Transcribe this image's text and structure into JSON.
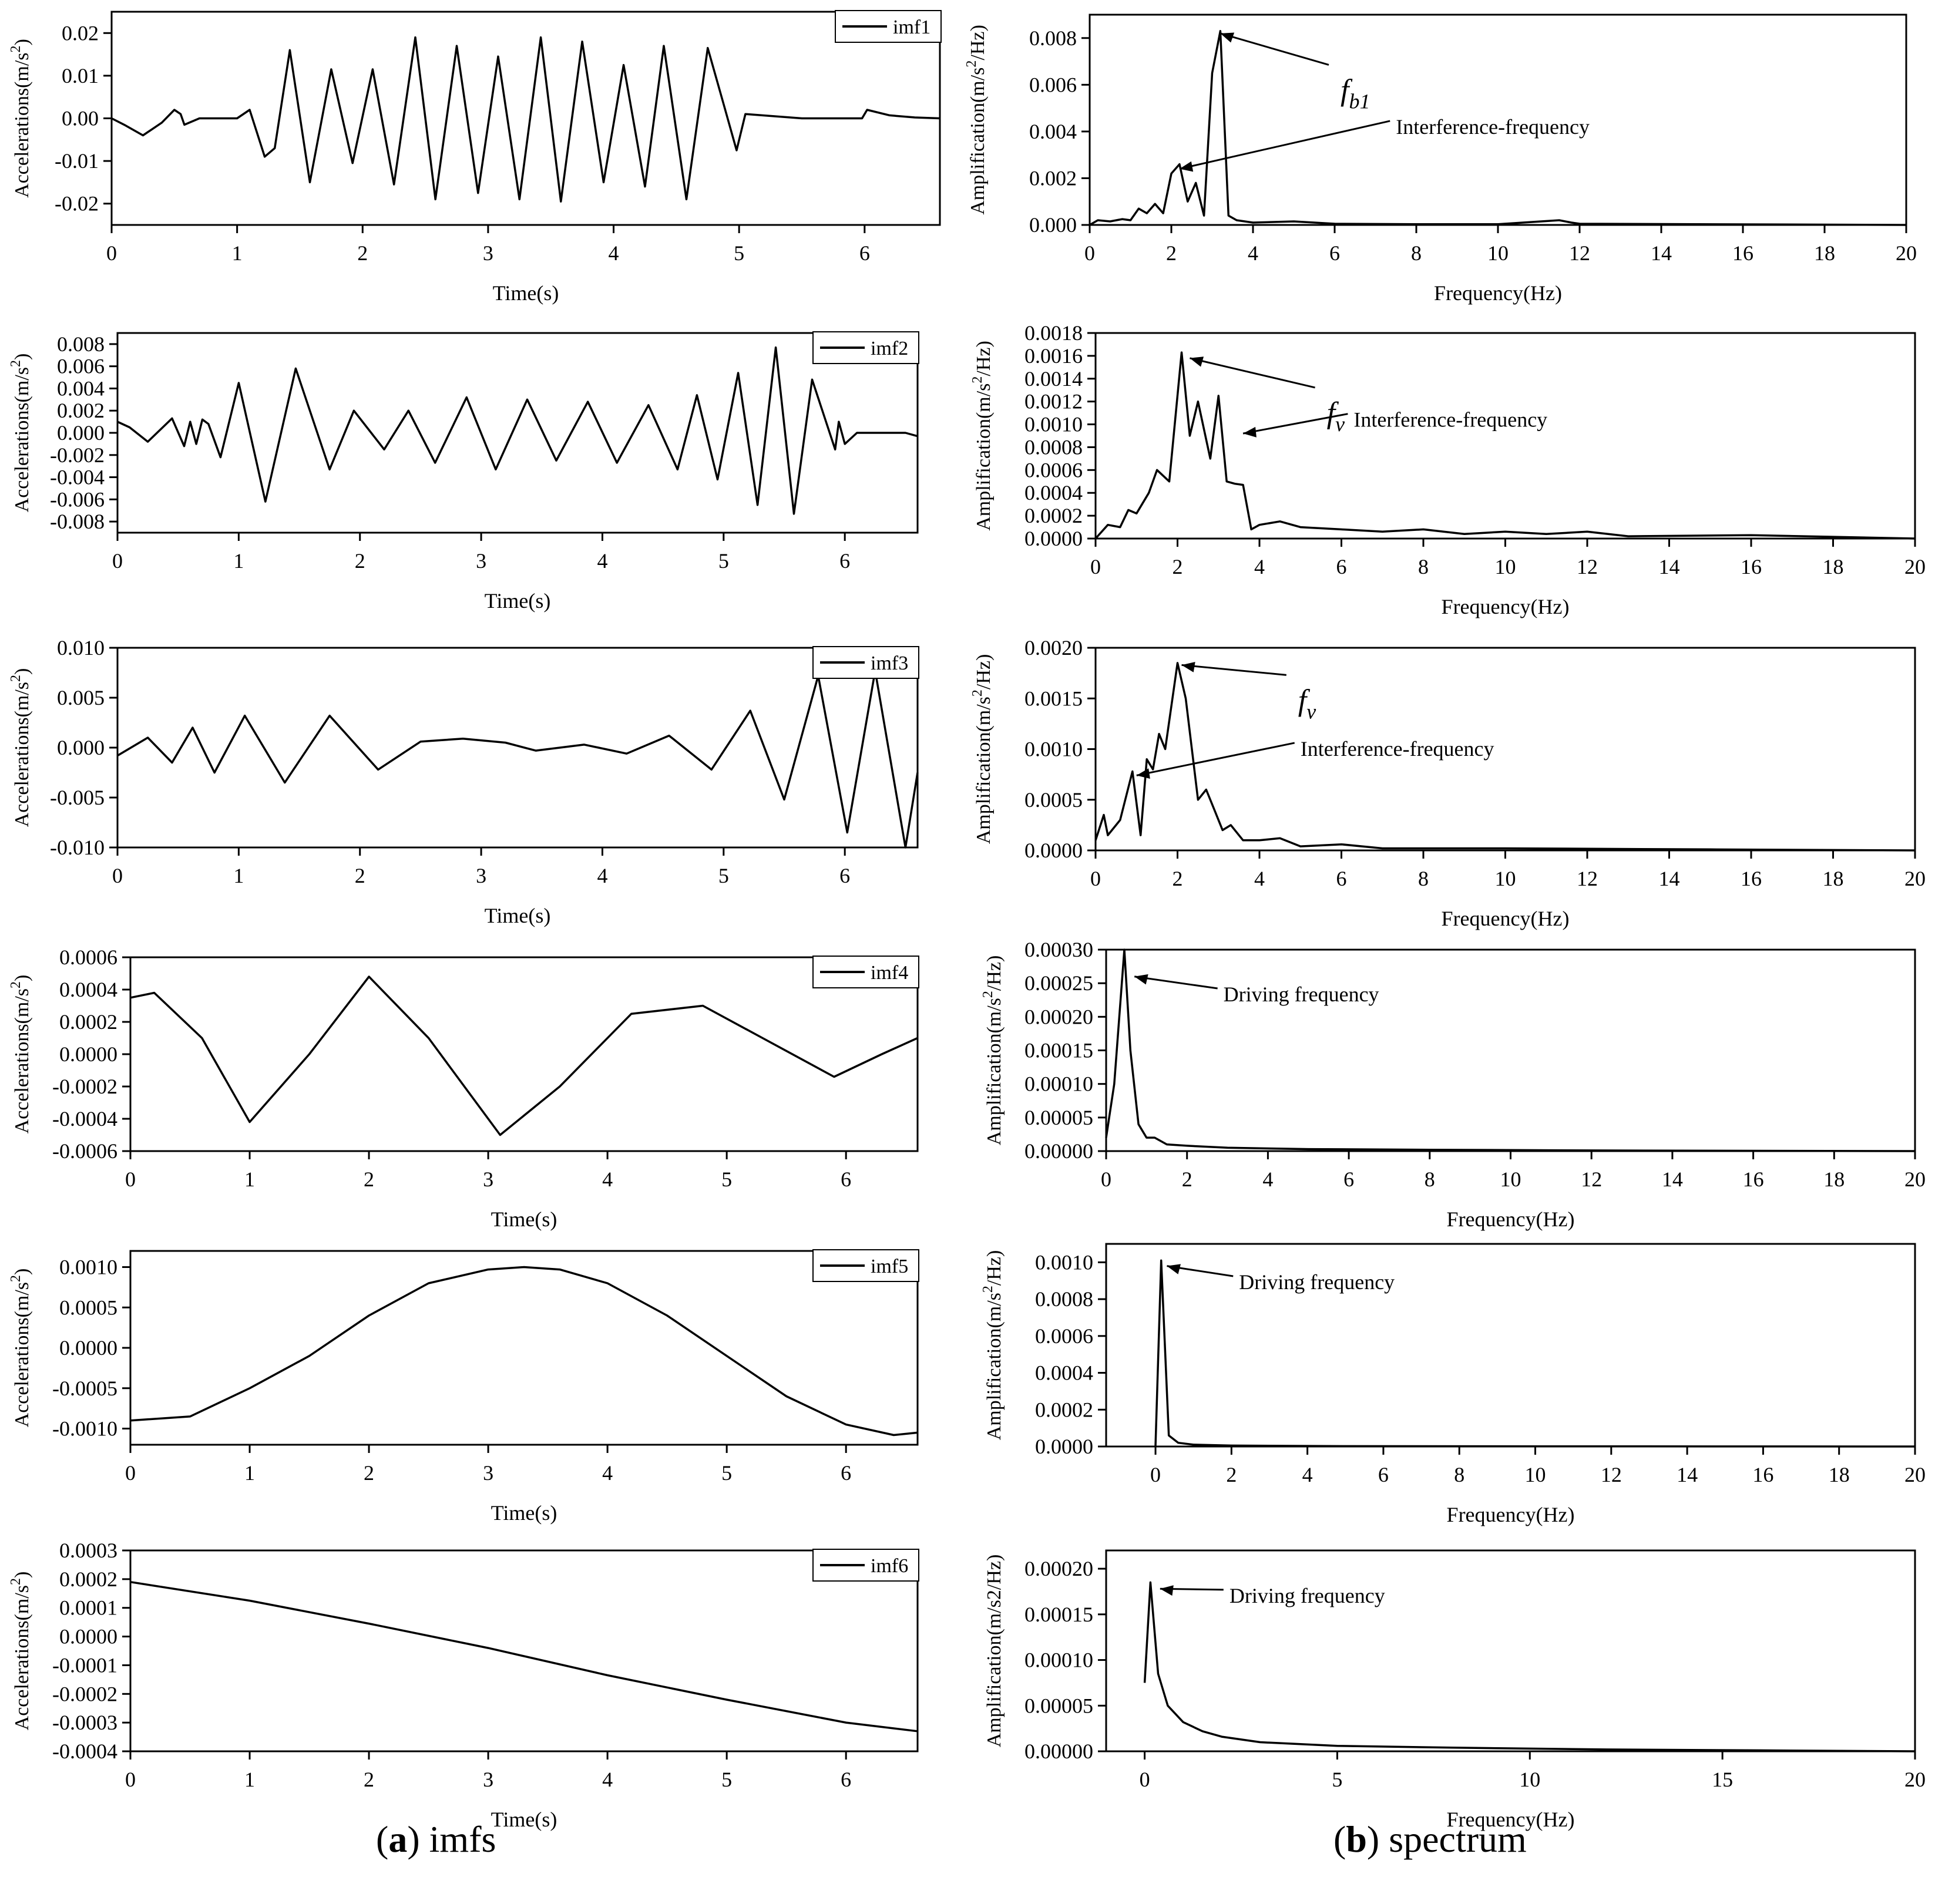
{
  "captions": {
    "a_letter": "a",
    "a_text": "imfs",
    "b_letter": "b",
    "b_text": "spectrum"
  },
  "colors": {
    "line": "#000000",
    "background": "#ffffff"
  },
  "chart_data": [
    {
      "id": "imf1",
      "type": "line",
      "xlabel": "Time(s)",
      "ylabel": "Accelerations(m/s²)",
      "xlim": [
        0,
        6.6
      ],
      "ylim": [
        -0.025,
        0.025
      ],
      "xticks": [
        "0",
        "1",
        "2",
        "3",
        "4",
        "5",
        "6"
      ],
      "yticks": [
        "-0.02",
        "-0.01",
        "0.00",
        "0.01",
        "0.02"
      ],
      "legend": "imf1",
      "legend_position": "top-right",
      "series": [
        {
          "name": "imf1",
          "x": [
            0,
            0.1,
            0.25,
            0.4,
            0.5,
            0.55,
            0.58,
            0.7,
            1.0,
            1.1,
            1.22,
            1.3,
            1.42,
            1.58,
            1.75,
            1.92,
            2.08,
            2.25,
            2.42,
            2.58,
            2.75,
            2.92,
            3.08,
            3.25,
            3.42,
            3.58,
            3.75,
            3.92,
            4.08,
            4.25,
            4.4,
            4.58,
            4.75,
            4.88,
            4.98,
            5.05,
            5.5,
            5.98,
            6.02,
            6.2,
            6.4,
            6.6
          ],
          "y": [
            0,
            -0.0015,
            -0.004,
            -0.001,
            0.002,
            0.001,
            -0.0015,
            0,
            0,
            0.002,
            -0.009,
            -0.007,
            0.016,
            -0.015,
            0.0115,
            -0.0105,
            0.0115,
            -0.0155,
            0.019,
            -0.019,
            0.017,
            -0.0175,
            0.0145,
            -0.019,
            0.019,
            -0.0195,
            0.018,
            -0.015,
            0.0125,
            -0.016,
            0.017,
            -0.019,
            0.0165,
            0.003,
            -0.0075,
            0.001,
            0,
            0,
            0.002,
            0.0007,
            0.0002,
            0
          ]
        }
      ],
      "annotations": []
    },
    {
      "id": "spec1",
      "type": "line",
      "xlabel": "Frequency(Hz)",
      "ylabel": "Amplification(m/s²/Hz)",
      "xlim": [
        0,
        20
      ],
      "ylim": [
        0,
        0.009
      ],
      "xticks": [
        "0",
        "2",
        "4",
        "6",
        "8",
        "10",
        "12",
        "14",
        "16",
        "18",
        "20"
      ],
      "yticks": [
        "0.000",
        "0.002",
        "0.004",
        "0.006",
        "0.008"
      ],
      "series": [
        {
          "name": "",
          "x": [
            0,
            0.2,
            0.5,
            0.8,
            1.0,
            1.2,
            1.4,
            1.6,
            1.8,
            2.0,
            2.2,
            2.4,
            2.6,
            2.8,
            3.0,
            3.2,
            3.4,
            3.6,
            4.0,
            5.0,
            6.0,
            8.0,
            10,
            11.5,
            11.8,
            12,
            20
          ],
          "y": [
            0,
            0.0002,
            0.00015,
            0.00025,
            0.0002,
            0.0007,
            0.0005,
            0.0009,
            0.0005,
            0.0022,
            0.0026,
            0.001,
            0.0018,
            0.0004,
            0.0065,
            0.0083,
            0.0004,
            0.0002,
            0.0001,
            0.00015,
            5e-05,
            3e-05,
            3e-05,
            0.0002,
            0.0001,
            5e-05,
            0
          ]
        }
      ],
      "annotations": [
        {
          "label": "b1",
          "kind": "f-sub",
          "x": 3.2,
          "y": 0.0082,
          "text_x": 6,
          "text_y": 0.0065
        },
        {
          "label": "Interference-frequency",
          "kind": "text",
          "x": 2.2,
          "y": 0.0024,
          "text_x": 7.5,
          "text_y": 0.0041
        }
      ]
    },
    {
      "id": "imf2",
      "type": "line",
      "xlabel": "Time(s)",
      "ylabel": "Accelerations(m/s²)",
      "xlim": [
        0,
        6.6
      ],
      "ylim": [
        -0.009,
        0.009
      ],
      "xticks": [
        "0",
        "1",
        "2",
        "3",
        "4",
        "5",
        "6"
      ],
      "yticks": [
        "-0.008",
        "-0.006",
        "-0.004",
        "-0.002",
        "0.000",
        "0.002",
        "0.004",
        "0.006",
        "0.008"
      ],
      "legend": "imf2",
      "legend_position": "top-right",
      "series": [
        {
          "name": "imf2",
          "x": [
            0,
            0.1,
            0.25,
            0.45,
            0.55,
            0.6,
            0.65,
            0.7,
            0.75,
            0.85,
            1.0,
            1.22,
            1.47,
            1.75,
            1.95,
            2.2,
            2.4,
            2.62,
            2.88,
            3.12,
            3.38,
            3.62,
            3.88,
            4.12,
            4.38,
            4.62,
            4.78,
            4.95,
            5.12,
            5.28,
            5.43,
            5.58,
            5.73,
            5.92,
            5.95,
            6.0,
            6.1,
            6.5,
            6.6
          ],
          "y": [
            0.001,
            0.0005,
            -0.0008,
            0.0013,
            -0.0012,
            0.001,
            -0.001,
            0.0012,
            0.0008,
            -0.0022,
            0.0045,
            -0.0062,
            0.0058,
            -0.0033,
            0.002,
            -0.0015,
            0.002,
            -0.0027,
            0.0032,
            -0.0033,
            0.003,
            -0.0025,
            0.0028,
            -0.0027,
            0.0025,
            -0.0033,
            0.0034,
            -0.0042,
            0.0054,
            -0.0065,
            0.0077,
            -0.0073,
            0.0048,
            -0.0015,
            0.001,
            -0.001,
            0,
            0,
            -0.0003
          ]
        }
      ],
      "annotations": []
    },
    {
      "id": "spec2",
      "type": "line",
      "xlabel": "Frequency(Hz)",
      "ylabel": "Amplification(m/s²/Hz)",
      "xlim": [
        0,
        20
      ],
      "ylim": [
        0,
        0.0018
      ],
      "xticks": [
        "0",
        "2",
        "4",
        "6",
        "8",
        "10",
        "12",
        "14",
        "16",
        "18",
        "20"
      ],
      "yticks": [
        "0.0000",
        "0.0002",
        "0.0004",
        "0.0006",
        "0.0008",
        "0.0010",
        "0.0012",
        "0.0014",
        "0.0016",
        "0.0018"
      ],
      "series": [
        {
          "name": "",
          "x": [
            0,
            0.3,
            0.6,
            0.8,
            1.0,
            1.3,
            1.5,
            1.8,
            2.1,
            2.3,
            2.5,
            2.8,
            3.0,
            3.2,
            3.4,
            3.6,
            3.8,
            4.0,
            4.5,
            5.0,
            6.0,
            7.0,
            8.0,
            9.0,
            10.0,
            11.0,
            12.0,
            13.0,
            16.0,
            20.0
          ],
          "y": [
            0,
            0.00012,
            0.0001,
            0.00025,
            0.00022,
            0.0004,
            0.0006,
            0.0005,
            0.00163,
            0.0009,
            0.0012,
            0.0007,
            0.00125,
            0.0005,
            0.00048,
            0.00047,
            8e-05,
            0.00012,
            0.00015,
            0.0001,
            8e-05,
            6e-05,
            8e-05,
            4e-05,
            6e-05,
            4e-05,
            6e-05,
            2e-05,
            3e-05,
            0
          ]
        }
      ],
      "annotations": [
        {
          "label": "v",
          "kind": "f-sub",
          "x": 2.3,
          "y": 0.00158,
          "text_x": 5.5,
          "text_y": 0.00125
        },
        {
          "label": "Interference-frequency",
          "kind": "text",
          "x": 3.6,
          "y": 0.00092,
          "text_x": 6.3,
          "text_y": 0.00102
        }
      ]
    },
    {
      "id": "imf3",
      "type": "line",
      "xlabel": "Time(s)",
      "ylabel": "Accelerations(m/s²)",
      "xlim": [
        0,
        6.6
      ],
      "ylim": [
        -0.01,
        0.01
      ],
      "xticks": [
        "0",
        "1",
        "2",
        "3",
        "4",
        "5",
        "6"
      ],
      "yticks": [
        "-0.010",
        "-0.005",
        "0.000",
        "0.005",
        "0.010"
      ],
      "legend": "imf3",
      "legend_position": "top-right",
      "series": [
        {
          "name": "imf3",
          "x": [
            0,
            0.25,
            0.45,
            0.62,
            0.8,
            1.05,
            1.38,
            1.75,
            2.15,
            2.5,
            2.85,
            3.2,
            3.45,
            3.85,
            4.2,
            4.55,
            4.9,
            5.22,
            5.5,
            5.78,
            6.02,
            6.25,
            6.5,
            6.6
          ],
          "y": [
            -0.0008,
            0.001,
            -0.0015,
            0.002,
            -0.0025,
            0.0032,
            -0.0035,
            0.0032,
            -0.0022,
            0.0006,
            0.0009,
            0.0005,
            -0.0003,
            0.0003,
            -0.0006,
            0.0012,
            -0.0022,
            0.0037,
            -0.0052,
            0.0072,
            -0.0085,
            0.0077,
            -0.01,
            -0.0025
          ]
        }
      ],
      "annotations": []
    },
    {
      "id": "spec3",
      "type": "line",
      "xlabel": "Frequency(Hz)",
      "ylabel": "Amplification(m/s²/Hz)",
      "xlim": [
        0,
        20
      ],
      "ylim": [
        0,
        0.002
      ],
      "xticks": [
        "0",
        "2",
        "4",
        "6",
        "8",
        "10",
        "12",
        "14",
        "16",
        "18",
        "20"
      ],
      "yticks": [
        "0.0000",
        "0.0005",
        "0.0010",
        "0.0015",
        "0.0020"
      ],
      "series": [
        {
          "name": "",
          "x": [
            0,
            0.2,
            0.3,
            0.6,
            0.9,
            1.1,
            1.25,
            1.4,
            1.55,
            1.7,
            2.0,
            2.2,
            2.5,
            2.7,
            2.9,
            3.1,
            3.3,
            3.6,
            4.0,
            4.5,
            5.0,
            6.0,
            7.0,
            10,
            15,
            20
          ],
          "y": [
            0.0001,
            0.00035,
            0.00015,
            0.0003,
            0.00078,
            0.00015,
            0.0009,
            0.0008,
            0.00115,
            0.001,
            0.00185,
            0.0015,
            0.0005,
            0.0006,
            0.0004,
            0.0002,
            0.00025,
            0.0001,
            0.0001,
            0.00012,
            4e-05,
            6e-05,
            2e-05,
            2e-05,
            1e-05,
            0
          ]
        }
      ],
      "annotations": [
        {
          "label": "v",
          "kind": "f-sub",
          "x": 2.1,
          "y": 0.00183,
          "text_x": 4.8,
          "text_y": 0.00165
        },
        {
          "label": "Interference-frequency",
          "kind": "text",
          "x": 1.0,
          "y": 0.00074,
          "text_x": 5.0,
          "text_y": 0.00098
        }
      ]
    },
    {
      "id": "imf4",
      "type": "line",
      "xlabel": "Time(s)",
      "ylabel": "Accelerations(m/s²)",
      "xlim": [
        0,
        6.6
      ],
      "ylim": [
        -0.0006,
        0.0006
      ],
      "xticks": [
        "0",
        "1",
        "2",
        "3",
        "4",
        "5",
        "6"
      ],
      "yticks": [
        "-0.0006",
        "-0.0004",
        "-0.0002",
        "0.0000",
        "0.0002",
        "0.0004",
        "0.0006"
      ],
      "legend": "imf4",
      "legend_position": "top-right",
      "series": [
        {
          "name": "imf4",
          "x": [
            0,
            0.2,
            0.6,
            1.0,
            1.5,
            2.0,
            2.5,
            3.1,
            3.6,
            4.2,
            4.8,
            5.3,
            5.9,
            6.3,
            6.6
          ],
          "y": [
            0.00035,
            0.00038,
            0.0001,
            -0.00042,
            0.0,
            0.00048,
            0.0001,
            -0.0005,
            -0.0002,
            0.00025,
            0.0003,
            0.0001,
            -0.00014,
            0.0,
            0.0001
          ]
        }
      ],
      "annotations": []
    },
    {
      "id": "spec4",
      "type": "line",
      "xlabel": "Frequency(Hz)",
      "ylabel": "Amplification(m/s²/Hz)",
      "xlim": [
        0,
        20
      ],
      "ylim": [
        0,
        0.0003
      ],
      "xticks": [
        "0",
        "2",
        "4",
        "6",
        "8",
        "10",
        "12",
        "14",
        "16",
        "18",
        "20"
      ],
      "yticks": [
        "0.00000",
        "0.00005",
        "0.00010",
        "0.00015",
        "0.00020",
        "0.00025",
        "0.00030"
      ],
      "series": [
        {
          "name": "",
          "x": [
            0,
            0.2,
            0.45,
            0.6,
            0.8,
            1.0,
            1.2,
            1.5,
            2.0,
            3.0,
            5.0,
            8.0,
            12.0,
            20.0
          ],
          "y": [
            2e-05,
            0.0001,
            0.0003,
            0.00015,
            4e-05,
            2e-05,
            2e-05,
            1e-05,
            8e-06,
            5e-06,
            3e-06,
            2e-06,
            1e-06,
            0
          ]
        }
      ],
      "annotations": [
        {
          "label": "Driving frequency",
          "kind": "text",
          "x": 0.7,
          "y": 0.00026,
          "text_x": 2.9,
          "text_y": 0.00023
        }
      ]
    },
    {
      "id": "imf5",
      "type": "line",
      "xlabel": "Time(s)",
      "ylabel": "Accelerations(m/s²)",
      "xlim": [
        0,
        6.6
      ],
      "ylim": [
        -0.0012,
        0.0012
      ],
      "xticks": [
        "0",
        "1",
        "2",
        "3",
        "4",
        "5",
        "6"
      ],
      "yticks": [
        "-0.0010",
        "-0.0005",
        "0.0000",
        "0.0005",
        "0.0010"
      ],
      "legend": "imf5",
      "legend_position": "top-right",
      "series": [
        {
          "name": "imf5",
          "x": [
            0,
            0.5,
            1.0,
            1.5,
            2.0,
            2.5,
            3.0,
            3.3,
            3.6,
            4.0,
            4.5,
            5.0,
            5.5,
            6.0,
            6.4,
            6.6
          ],
          "y": [
            -0.0009,
            -0.00085,
            -0.0005,
            -0.0001,
            0.0004,
            0.0008,
            0.00097,
            0.001,
            0.00097,
            0.0008,
            0.0004,
            -0.0001,
            -0.0006,
            -0.00095,
            -0.00108,
            -0.00105
          ]
        }
      ],
      "annotations": []
    },
    {
      "id": "spec5",
      "type": "line",
      "xlabel": "Frequency(Hz)",
      "ylabel": "Amplification(m/s²/Hz)",
      "xlim": [
        -1.3,
        20
      ],
      "ylim": [
        0,
        0.0011
      ],
      "xticks": [
        "0",
        "2",
        "4",
        "6",
        "8",
        "10",
        "12",
        "14",
        "16",
        "18",
        "20"
      ],
      "yticks": [
        "0.0000",
        "0.0002",
        "0.0004",
        "0.0006",
        "0.0008",
        "0.0010"
      ],
      "series": [
        {
          "name": "",
          "x": [
            0,
            0.15,
            0.35,
            0.6,
            1.0,
            2.0,
            5.0,
            10.0,
            20.0
          ],
          "y": [
            0,
            0.00101,
            6e-05,
            2e-05,
            1e-05,
            5e-06,
            2e-06,
            1e-06,
            0
          ]
        }
      ],
      "annotations": [
        {
          "label": "Driving frequency",
          "kind": "text",
          "x": 0.3,
          "y": 0.00098,
          "text_x": 2.2,
          "text_y": 0.00088
        }
      ]
    },
    {
      "id": "imf6",
      "type": "line",
      "xlabel": "Time(s)",
      "ylabel": "Accelerations(m/s²)",
      "xlim": [
        0,
        6.6
      ],
      "ylim": [
        -0.0004,
        0.0003
      ],
      "xticks": [
        "0",
        "1",
        "2",
        "3",
        "4",
        "5",
        "6"
      ],
      "yticks": [
        "-0.0004",
        "-0.0003",
        "-0.0002",
        "-0.0001",
        "0.0000",
        "0.0001",
        "0.0002",
        "0.0003"
      ],
      "legend": "imf6",
      "legend_position": "top-right",
      "series": [
        {
          "name": "imf6",
          "x": [
            0,
            1,
            2,
            3,
            4,
            5,
            6,
            6.6
          ],
          "y": [
            0.00019,
            0.000125,
            4.5e-05,
            -4e-05,
            -0.000135,
            -0.00022,
            -0.0003,
            -0.00033
          ]
        }
      ],
      "annotations": []
    },
    {
      "id": "spec6",
      "type": "line",
      "xlabel": "Frequency(Hz)",
      "ylabel": "Amplification(m/s2/Hz)",
      "xlim": [
        -1,
        20
      ],
      "ylim": [
        0,
        0.00022
      ],
      "xticks": [
        "0",
        "5",
        "10",
        "15",
        "20"
      ],
      "yticks": [
        "0.00000",
        "0.00005",
        "0.00010",
        "0.00015",
        "0.00020"
      ],
      "series": [
        {
          "name": "",
          "x": [
            0,
            0.15,
            0.35,
            0.6,
            1.0,
            1.5,
            2.0,
            3.0,
            5.0,
            8.0,
            12.0,
            16.0,
            20.0
          ],
          "y": [
            7.5e-05,
            0.000185,
            8.5e-05,
            5e-05,
            3.2e-05,
            2.2e-05,
            1.6e-05,
            1e-05,
            6e-06,
            4e-06,
            2e-06,
            1e-06,
            0
          ]
        }
      ],
      "annotations": [
        {
          "label": "Driving frequency",
          "kind": "text",
          "x": 0.4,
          "y": 0.000178,
          "text_x": 2.2,
          "text_y": 0.000168
        }
      ]
    }
  ]
}
